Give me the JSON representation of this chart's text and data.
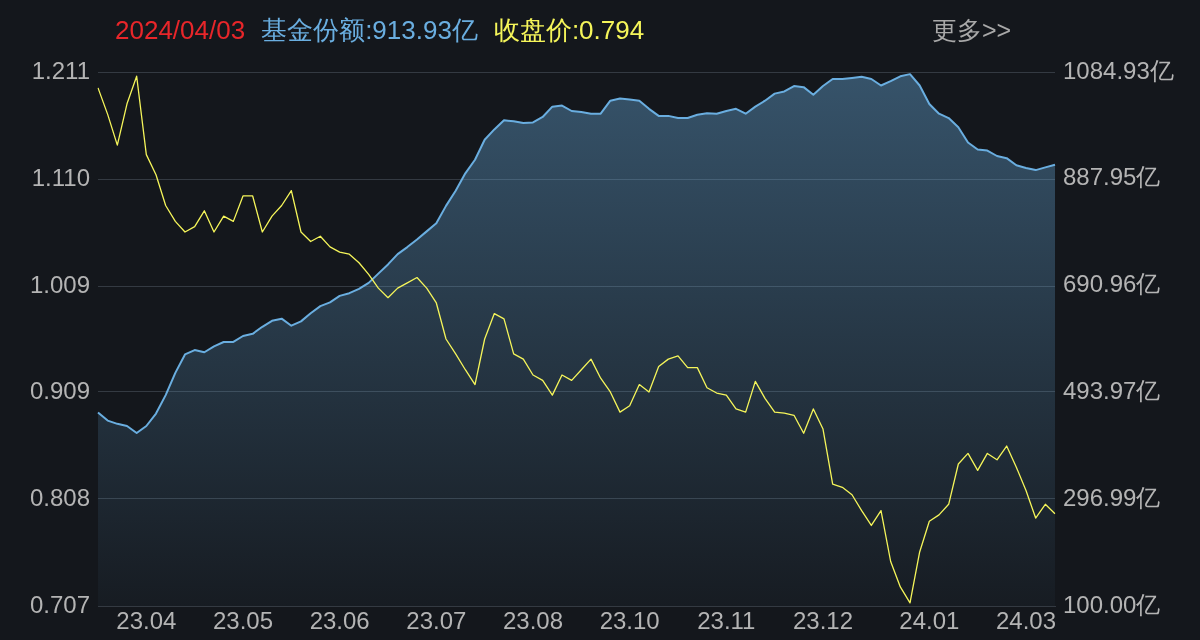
{
  "chart_data": {
    "type": "line",
    "title": "2024/04/03",
    "annotations": [
      "更多>>"
    ],
    "legend": "top",
    "grid": "y",
    "marker": "none",
    "categories": [
      null,
      null,
      null,
      null,
      null,
      "23.04",
      null,
      null,
      null,
      null,
      null,
      null,
      null,
      null,
      null,
      "23.05",
      null,
      null,
      null,
      null,
      null,
      null,
      null,
      null,
      null,
      "23.06",
      null,
      null,
      null,
      null,
      null,
      null,
      null,
      null,
      null,
      "23.07",
      null,
      null,
      null,
      null,
      null,
      null,
      null,
      null,
      null,
      "23.08",
      null,
      null,
      null,
      null,
      null,
      null,
      null,
      null,
      null,
      "23.10",
      null,
      null,
      null,
      null,
      null,
      null,
      null,
      null,
      null,
      "23.11",
      null,
      null,
      null,
      null,
      null,
      null,
      null,
      null,
      null,
      "23.12",
      null,
      null,
      null,
      null,
      null,
      null,
      null,
      null,
      null,
      null,
      "24.01",
      null,
      null,
      null,
      null,
      null,
      null,
      null,
      null,
      null,
      "24.03",
      null,
      null,
      null
    ],
    "ylim": [
      0.707,
      1.211
    ],
    "yticks": [
      0.707,
      0.808,
      0.909,
      1.009,
      {
        "value": 1.11,
        "label": "1.110"
      },
      1.211
    ],
    "y2lim": [
      100,
      1084.93
    ],
    "y2ticks": [
      {
        "value": 100,
        "label": "100.00亿"
      },
      {
        "value": 296.99,
        "label": "296.99亿"
      },
      {
        "value": 493.97,
        "label": "493.97亿"
      },
      {
        "value": 690.96,
        "label": "690.96亿"
      },
      {
        "value": 887.95,
        "label": "887.95亿"
      },
      {
        "value": 1084.93,
        "label": "1084.93亿"
      }
    ],
    "series": [
      {
        "name": "基金份额:913.93亿",
        "type": "area",
        "axis": "y2",
        "color": "#6aaee0",
        "values": [
          457,
          442,
          436,
          432,
          419,
          432,
          455,
          489,
          530,
          564,
          572,
          568,
          579,
          587,
          587,
          598,
          602,
          615,
          626,
          630,
          617,
          625,
          640,
          653,
          660,
          672,
          677,
          685,
          696,
          713,
          730,
          749,
          762,
          776,
          791,
          806,
          838,
          866,
          898,
          923,
          960,
          979,
          996,
          994,
          991,
          992,
          1002,
          1021,
          1023,
          1013,
          1011,
          1008,
          1008,
          1032,
          1036,
          1034,
          1032,
          1017,
          1004,
          1004,
          1000,
          1000,
          1006,
          1009,
          1008,
          1013,
          1017,
          1008,
          1021,
          1032,
          1045,
          1049,
          1059,
          1057,
          1043,
          1059,
          1072,
          1072,
          1074,
          1076,
          1072,
          1060,
          1068,
          1077,
          1081,
          1060,
          1026,
          1008,
          1000,
          983,
          955,
          942,
          940,
          930,
          926,
          913,
          908,
          904,
          909,
          913.93
        ]
      },
      {
        "name": "收盘价:0.794",
        "axis": "y",
        "color": "#f5f55a",
        "values": [
          1.196,
          1.171,
          1.142,
          1.181,
          1.207,
          1.133,
          1.114,
          1.085,
          1.07,
          1.06,
          1.065,
          1.08,
          1.06,
          1.075,
          1.07,
          1.094,
          1.094,
          1.06,
          1.075,
          1.085,
          1.099,
          1.06,
          1.051,
          1.056,
          1.046,
          1.041,
          1.039,
          1.031,
          1.02,
          1.007,
          0.998,
          1.007,
          1.012,
          1.017,
          1.007,
          0.993,
          0.959,
          0.945,
          0.93,
          0.916,
          0.959,
          0.983,
          0.978,
          0.945,
          0.94,
          0.925,
          0.92,
          0.906,
          0.925,
          0.92,
          0.93,
          0.94,
          0.922,
          0.909,
          0.89,
          0.896,
          0.916,
          0.909,
          0.933,
          0.94,
          0.943,
          0.932,
          0.932,
          0.913,
          0.908,
          0.906,
          0.893,
          0.89,
          0.919,
          0.903,
          0.89,
          0.889,
          0.887,
          0.87,
          0.893,
          0.874,
          0.822,
          0.819,
          0.812,
          0.797,
          0.783,
          0.797,
          0.749,
          0.725,
          0.71,
          0.758,
          0.787,
          0.793,
          0.803,
          0.841,
          0.851,
          0.835,
          0.851,
          0.845,
          0.858,
          0.838,
          0.816,
          0.79,
          0.803,
          0.794
        ]
      }
    ]
  }
}
